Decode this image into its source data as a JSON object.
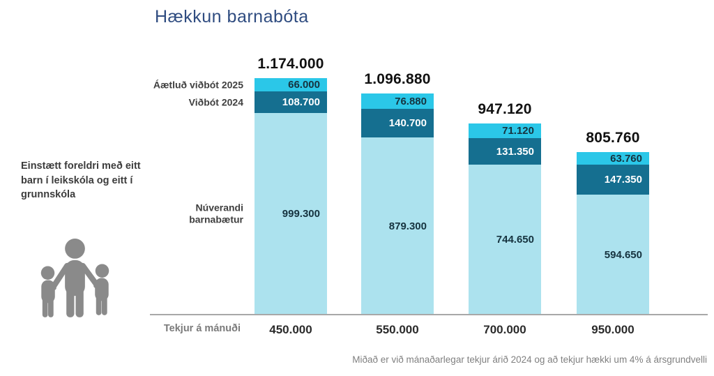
{
  "header": {
    "title": "Hækkun barnabóta"
  },
  "scenario": {
    "text": "Einstætt foreldri með eitt barn í leikskóla og eitt í grunnskóla"
  },
  "icons": {
    "family_icon": "family-adult-with-two-children",
    "icon_color": "#8a8a8a"
  },
  "chart_data": {
    "type": "bar",
    "stacked": true,
    "title": "Hækkun barnabóta",
    "x_axis_label": "Tekjur á mánuði",
    "categories": [
      "450.000",
      "550.000",
      "700.000",
      "950.000"
    ],
    "series": [
      {
        "name": "Núverandi barnabætur",
        "color": "#ACE2EE",
        "text_color": "#16333F",
        "values": [
          999300,
          879300,
          744650,
          594650
        ],
        "labels": [
          "999.300",
          "879.300",
          "744.650",
          "594.650"
        ]
      },
      {
        "name": "Viðbót 2024",
        "color": "#156F90",
        "text_color": "#FFFFFF",
        "values": [
          108700,
          140700,
          131350,
          147350
        ],
        "labels": [
          "108.700",
          "140.700",
          "131.350",
          "147.350"
        ]
      },
      {
        "name": "Áætluð viðbót 2025",
        "color": "#2BC7E8",
        "text_color": "#16333F",
        "values": [
          66000,
          76880,
          71120,
          63760
        ],
        "labels": [
          "66.000",
          "76.880",
          "71.120",
          "63.760"
        ]
      }
    ],
    "totals": [
      "1.174.000",
      "1.096.880",
      "947.120",
      "805.760"
    ],
    "totals_values": [
      1174000,
      1096880,
      947120,
      805760
    ],
    "footnote": "Miðað er við mánaðarlegar tekjur árið 2024 og að tekjur hækki um 4% á ársgrundvelli",
    "legend_position": "left-of-first-bar",
    "grid": false
  }
}
